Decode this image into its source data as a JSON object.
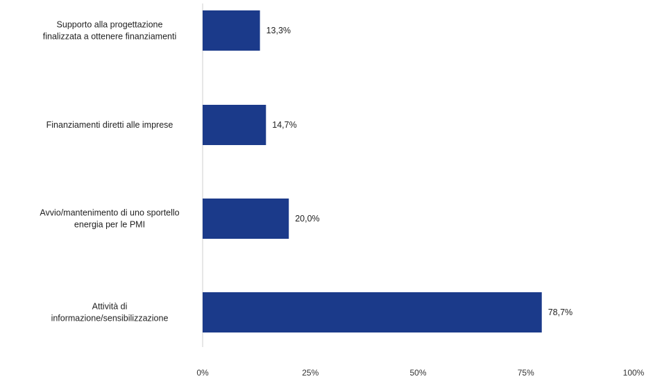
{
  "chart_data": {
    "type": "bar",
    "orientation": "horizontal",
    "categories": [
      [
        "Supporto alla progettazione",
        "finalizzata a ottenere finanziamenti"
      ],
      [
        "Finanziamenti diretti alle imprese"
      ],
      [
        "Avvio/mantenimento di uno sportello",
        "energia per le PMI"
      ],
      [
        "Attività di",
        "informazione/sensibilizzazione"
      ]
    ],
    "values": [
      13.3,
      14.7,
      20.0,
      78.7
    ],
    "value_labels": [
      "13,3%",
      "14,7%",
      "20,0%",
      "78,7%"
    ],
    "xlim": [
      0,
      100
    ],
    "ticks": [
      0,
      25,
      50,
      75,
      100
    ],
    "tick_labels": [
      "0%",
      "25%",
      "50%",
      "75%",
      "100%"
    ],
    "grid": false,
    "legend": "none",
    "bar_color": "#1b3a8a"
  }
}
